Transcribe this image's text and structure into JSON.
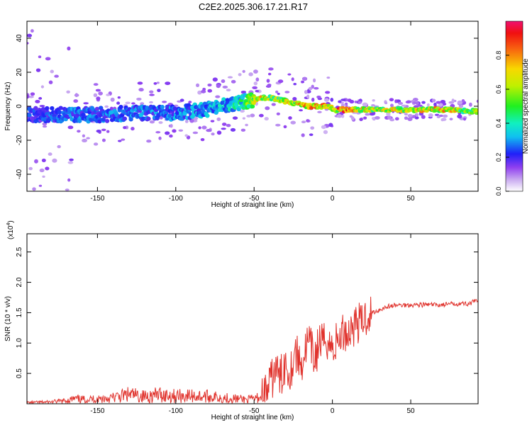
{
  "title": "C2E2.2025.306.17.21.R17",
  "chart_data": [
    {
      "type": "heatmap",
      "xlabel": "Height of straight line (km)",
      "ylabel": "Frequency (Hz)",
      "xlim": [
        -195,
        93
      ],
      "ylim": [
        -50,
        50
      ],
      "xticks": [
        -150,
        -100,
        -50,
        0,
        50
      ],
      "xtick_labels": [
        "-150",
        "-100",
        "-50",
        "0",
        "50"
      ],
      "yticks": [
        -40,
        -20,
        0,
        20,
        40
      ],
      "ytick_labels": [
        "-40",
        "-20",
        "0",
        "20",
        "40"
      ],
      "colorbar": {
        "label": "Normalized spectral amplitude",
        "range": [
          0,
          1
        ],
        "ticks": [
          0.0,
          0.2,
          0.4,
          0.6,
          0.8
        ],
        "tick_labels": [
          "0.0",
          "0.2",
          "0.4",
          "0.6",
          "0.8"
        ],
        "colormap": "rainbow (white-violet-blue-cyan-green-yellow-red-magenta)"
      },
      "ridge": {
        "x": [
          -195,
          -175,
          -150,
          -125,
          -100,
          -90,
          -75,
          -60,
          -50,
          -45,
          -40,
          -35,
          -30,
          -25,
          -20,
          -15,
          -10,
          -5,
          0,
          2,
          5,
          10,
          20,
          30,
          50,
          70,
          93
        ],
        "frequency": [
          -5,
          -5,
          -5,
          -4,
          -4,
          -3,
          -1,
          2,
          4,
          5,
          5,
          4,
          3,
          2,
          1,
          0,
          0,
          0,
          -1,
          -3,
          -2,
          -2,
          -2,
          -2,
          -2,
          -2,
          -3
        ],
        "amplitude": [
          0.25,
          0.3,
          0.3,
          0.32,
          0.33,
          0.34,
          0.38,
          0.45,
          0.7,
          0.8,
          0.75,
          0.65,
          0.7,
          0.8,
          0.85,
          0.88,
          0.9,
          0.85,
          0.7,
          0.75,
          0.95,
          0.9,
          0.75,
          0.75,
          0.75,
          0.85,
          0.6
        ]
      },
      "grid": false
    },
    {
      "type": "line",
      "xlabel": "Height of straight line (km)",
      "ylabel": "SNR (10 * v/v)",
      "y_multiplier_label": "(x10",
      "y_multiplier_exp": "4",
      "y_multiplier_close": ")",
      "xlim": [
        -195,
        93
      ],
      "ylim": [
        0,
        2.8
      ],
      "xticks": [
        -150,
        -100,
        -50,
        0,
        50
      ],
      "xtick_labels": [
        "-150",
        "-100",
        "-50",
        "0",
        "50"
      ],
      "yticks": [
        0.5,
        1.0,
        1.5,
        2.0,
        2.5
      ],
      "ytick_labels": [
        "0.5",
        "1.0",
        "1.5",
        "2.0",
        "2.5"
      ],
      "series": [
        {
          "color": "#e0322c",
          "x": [
            -195,
            -180,
            -170,
            -165,
            -160,
            -150,
            -140,
            -130,
            -120,
            -110,
            -100,
            -90,
            -80,
            -70,
            -60,
            -55,
            -50,
            -45,
            -42,
            -40,
            -38,
            -36,
            -34,
            -32,
            -30,
            -28,
            -26,
            -24,
            -22,
            -20,
            -18,
            -16,
            -14,
            -12,
            -10,
            -8,
            -6,
            -4,
            -2,
            0,
            2,
            4,
            6,
            8,
            10,
            12,
            14,
            16,
            18,
            20,
            22,
            25,
            28,
            30,
            35,
            40,
            50,
            60,
            70,
            80,
            88,
            90,
            93
          ],
          "y": [
            0.02,
            0.03,
            0.05,
            0.08,
            0.07,
            0.08,
            0.1,
            0.15,
            0.12,
            0.15,
            0.13,
            0.13,
            0.12,
            0.1,
            0.08,
            0.07,
            0.08,
            0.12,
            0.2,
            0.3,
            0.45,
            0.6,
            0.4,
            0.5,
            0.7,
            0.55,
            0.6,
            0.9,
            0.75,
            0.65,
            0.8,
            1.0,
            0.95,
            0.75,
            0.85,
            1.05,
            0.95,
            1.1,
            1.0,
            0.9,
            1.0,
            1.05,
            1.15,
            1.2,
            1.15,
            1.25,
            1.3,
            1.35,
            1.3,
            1.4,
            1.45,
            1.5,
            1.52,
            1.55,
            1.6,
            1.62,
            1.63,
            1.63,
            1.63,
            1.65,
            1.65,
            1.68,
            1.7
          ]
        }
      ],
      "grid": false
    }
  ]
}
